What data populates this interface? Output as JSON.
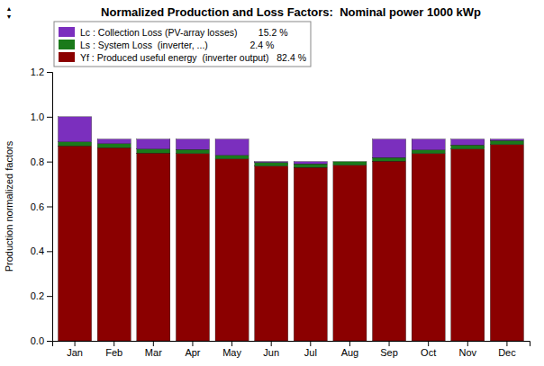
{
  "chart_data": {
    "type": "bar",
    "stacked": true,
    "title": "Normalized Production and Loss Factors:  Nominal power 1000 kWp",
    "y_label": "Production normalized factors",
    "categories": [
      "Jan",
      "Feb",
      "Mar",
      "Apr",
      "May",
      "Jun",
      "Jul",
      "Aug",
      "Sep",
      "Oct",
      "Nov",
      "Dec"
    ],
    "series": [
      {
        "name": "Yf : Produced useful energy  (inverter output)   82.4 %",
        "color": "#8B0000",
        "values": [
          0.87,
          0.862,
          0.838,
          0.836,
          0.812,
          0.78,
          0.774,
          0.784,
          0.802,
          0.836,
          0.856,
          0.876
        ]
      },
      {
        "name": "Ls : System Loss  (inverter, ...)                2.4 %",
        "color": "#1a7a1a",
        "values": [
          0.018,
          0.018,
          0.018,
          0.018,
          0.016,
          0.016,
          0.016,
          0.016,
          0.016,
          0.016,
          0.018,
          0.018
        ]
      },
      {
        "name": "Lc : Collection Loss (PV-array losses)        15.2 %",
        "color": "#7B2FBE",
        "values": [
          0.112,
          0.02,
          0.044,
          0.046,
          0.072,
          0.004,
          0.01,
          0.0,
          0.082,
          0.048,
          0.026,
          0.006
        ]
      }
    ],
    "ylim": [
      0.0,
      1.2
    ],
    "yticks": [
      {
        "value": 0.0,
        "label": "0.0"
      },
      0.2,
      0.4,
      0.6,
      0.8,
      {
        "value": 1.0,
        "label": "1.0"
      },
      1.2
    ],
    "grid": false,
    "legend": "upper left",
    "annotations": [
      "▲",
      "▼"
    ]
  }
}
